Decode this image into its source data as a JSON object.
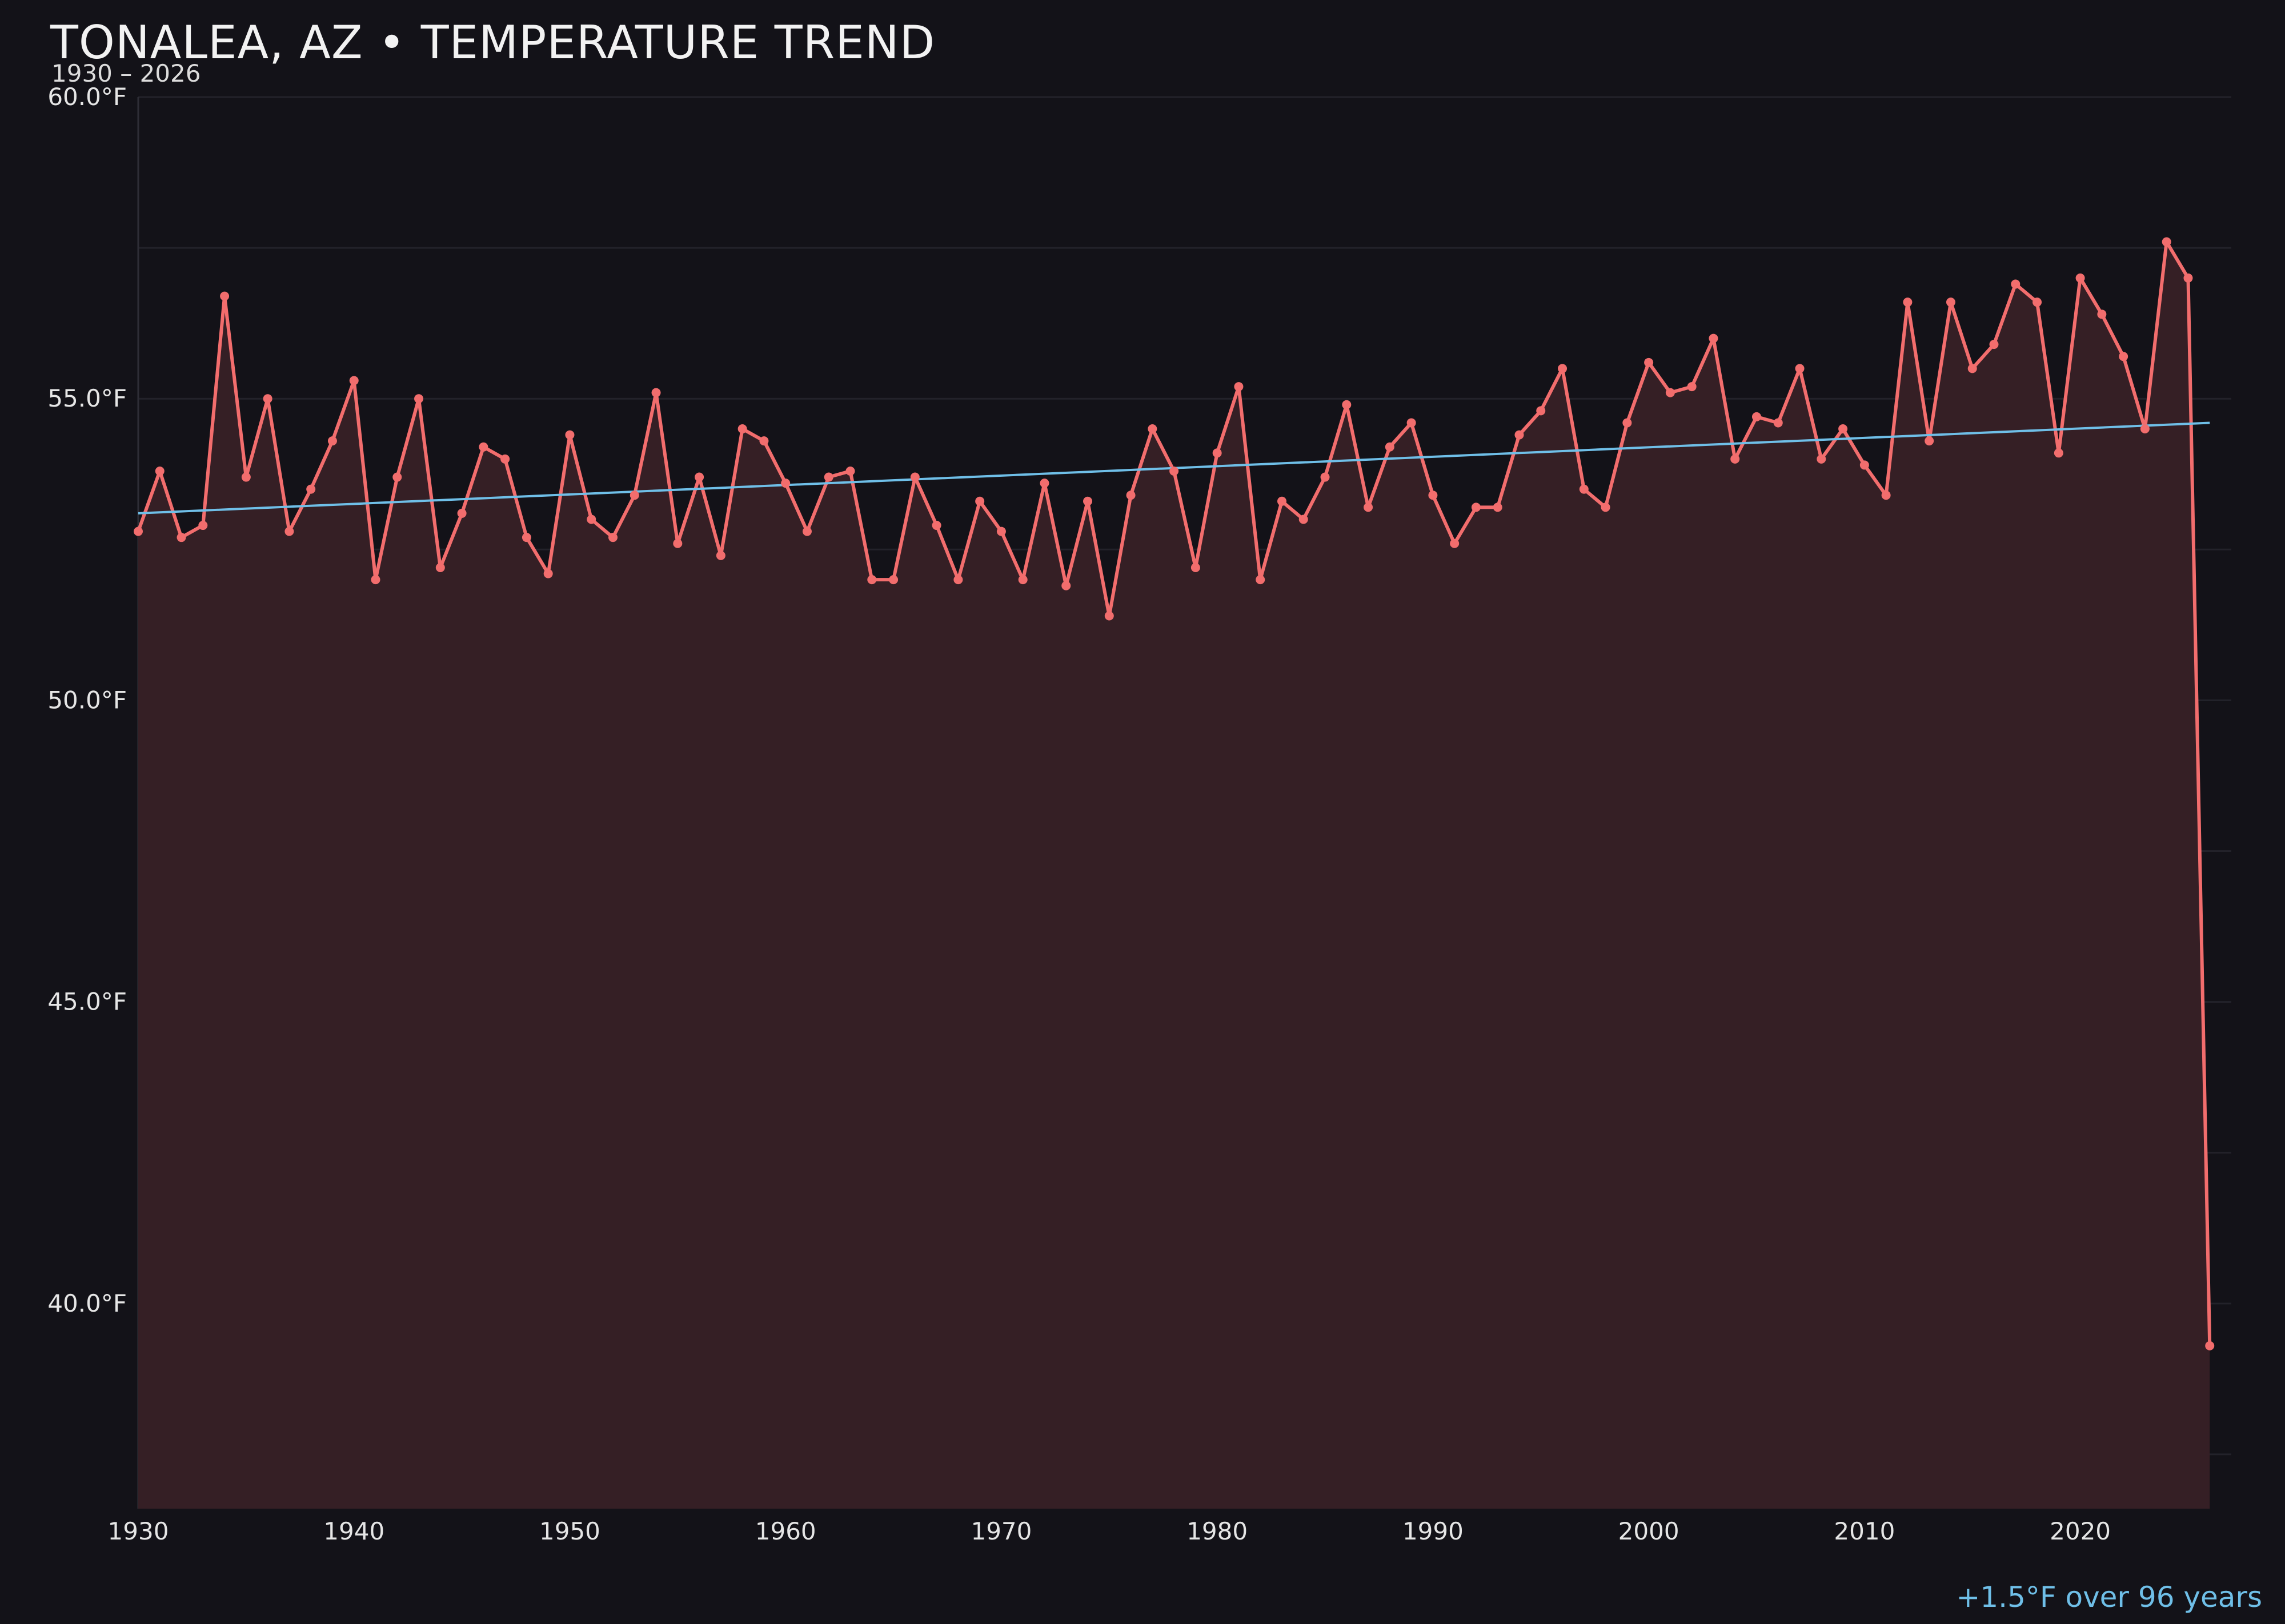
{
  "header": {
    "title": "TONALEA, AZ • TEMPERATURE TREND",
    "subtitle": "1930 – 2026"
  },
  "footer": {
    "trend_note": "+1.5°F over 96 years"
  },
  "colors": {
    "background": "#131218",
    "series": "#f26d6d",
    "area_fill": "#351f25",
    "trend": "#6fbfe8",
    "grid": "#23222a"
  },
  "chart_data": {
    "type": "line",
    "title": "TONALEA, AZ • TEMPERATURE TREND",
    "subtitle": "1930 – 2026",
    "xlabel": "",
    "ylabel": "",
    "xlim": [
      1930,
      2027
    ],
    "ylim": [
      36.6,
      60.0
    ],
    "x_ticks": [
      1930,
      1940,
      1950,
      1960,
      1970,
      1980,
      1990,
      2000,
      2010,
      2020
    ],
    "y_ticks": [
      40.0,
      45.0,
      50.0,
      55.0,
      60.0
    ],
    "y_tick_labels": [
      "40.0°F",
      "45.0°F",
      "50.0°F",
      "55.0°F",
      "60.0°F"
    ],
    "grid": true,
    "legend": "none",
    "series": [
      {
        "x": [
          1930,
          1931,
          1932,
          1933,
          1934,
          1935,
          1936,
          1937,
          1938,
          1939,
          1940,
          1941,
          1942,
          1943,
          1944,
          1945,
          1946,
          1947,
          1948,
          1949,
          1950,
          1951,
          1952,
          1953,
          1954,
          1955,
          1956,
          1957,
          1958,
          1959,
          1960,
          1961,
          1962,
          1963,
          1964,
          1965,
          1966,
          1967,
          1968,
          1969,
          1970,
          1971,
          1972,
          1973,
          1974,
          1975,
          1976,
          1977,
          1978,
          1979,
          1980,
          1981,
          1982,
          1983,
          1984,
          1985,
          1986,
          1987,
          1988,
          1989,
          1990,
          1991,
          1992,
          1993,
          1994,
          1995,
          1996,
          1997,
          1998,
          1999,
          2000,
          2001,
          2002,
          2003,
          2004,
          2005,
          2006,
          2007,
          2008,
          2009,
          2010,
          2011,
          2012,
          2013,
          2014,
          2015,
          2016,
          2017,
          2018,
          2019,
          2020,
          2021,
          2022,
          2023,
          2024,
          2025,
          2026
        ],
        "values": [
          52.8,
          53.8,
          52.7,
          52.9,
          56.7,
          53.7,
          55.0,
          52.8,
          53.5,
          54.3,
          55.3,
          52.0,
          53.7,
          55.0,
          52.2,
          53.1,
          54.2,
          54.0,
          52.7,
          52.1,
          54.4,
          53.0,
          52.7,
          53.4,
          55.1,
          52.6,
          53.7,
          52.4,
          54.5,
          54.3,
          53.6,
          52.8,
          53.7,
          53.8,
          52.0,
          52.0,
          53.7,
          52.9,
          52.0,
          53.3,
          52.8,
          52.0,
          53.6,
          51.9,
          53.3,
          51.4,
          53.4,
          54.5,
          53.8,
          52.2,
          54.1,
          55.2,
          52.0,
          53.3,
          53.0,
          53.7,
          54.9,
          53.2,
          54.2,
          54.6,
          53.4,
          52.6,
          53.2,
          53.2,
          54.4,
          54.8,
          55.5,
          53.5,
          53.2,
          54.6,
          55.6,
          55.1,
          55.2,
          56.0,
          54.0,
          54.7,
          54.6,
          55.5,
          54.0,
          54.5,
          53.9,
          53.4,
          56.6,
          54.3,
          56.6,
          55.5,
          55.9,
          56.9,
          56.6,
          54.1,
          57.0,
          56.4,
          55.7,
          54.5,
          57.6,
          57.0,
          39.3
        ]
      },
      {
        "name": "trend",
        "x": [
          1930,
          2026
        ],
        "values": [
          53.1,
          54.6
        ]
      }
    ]
  }
}
